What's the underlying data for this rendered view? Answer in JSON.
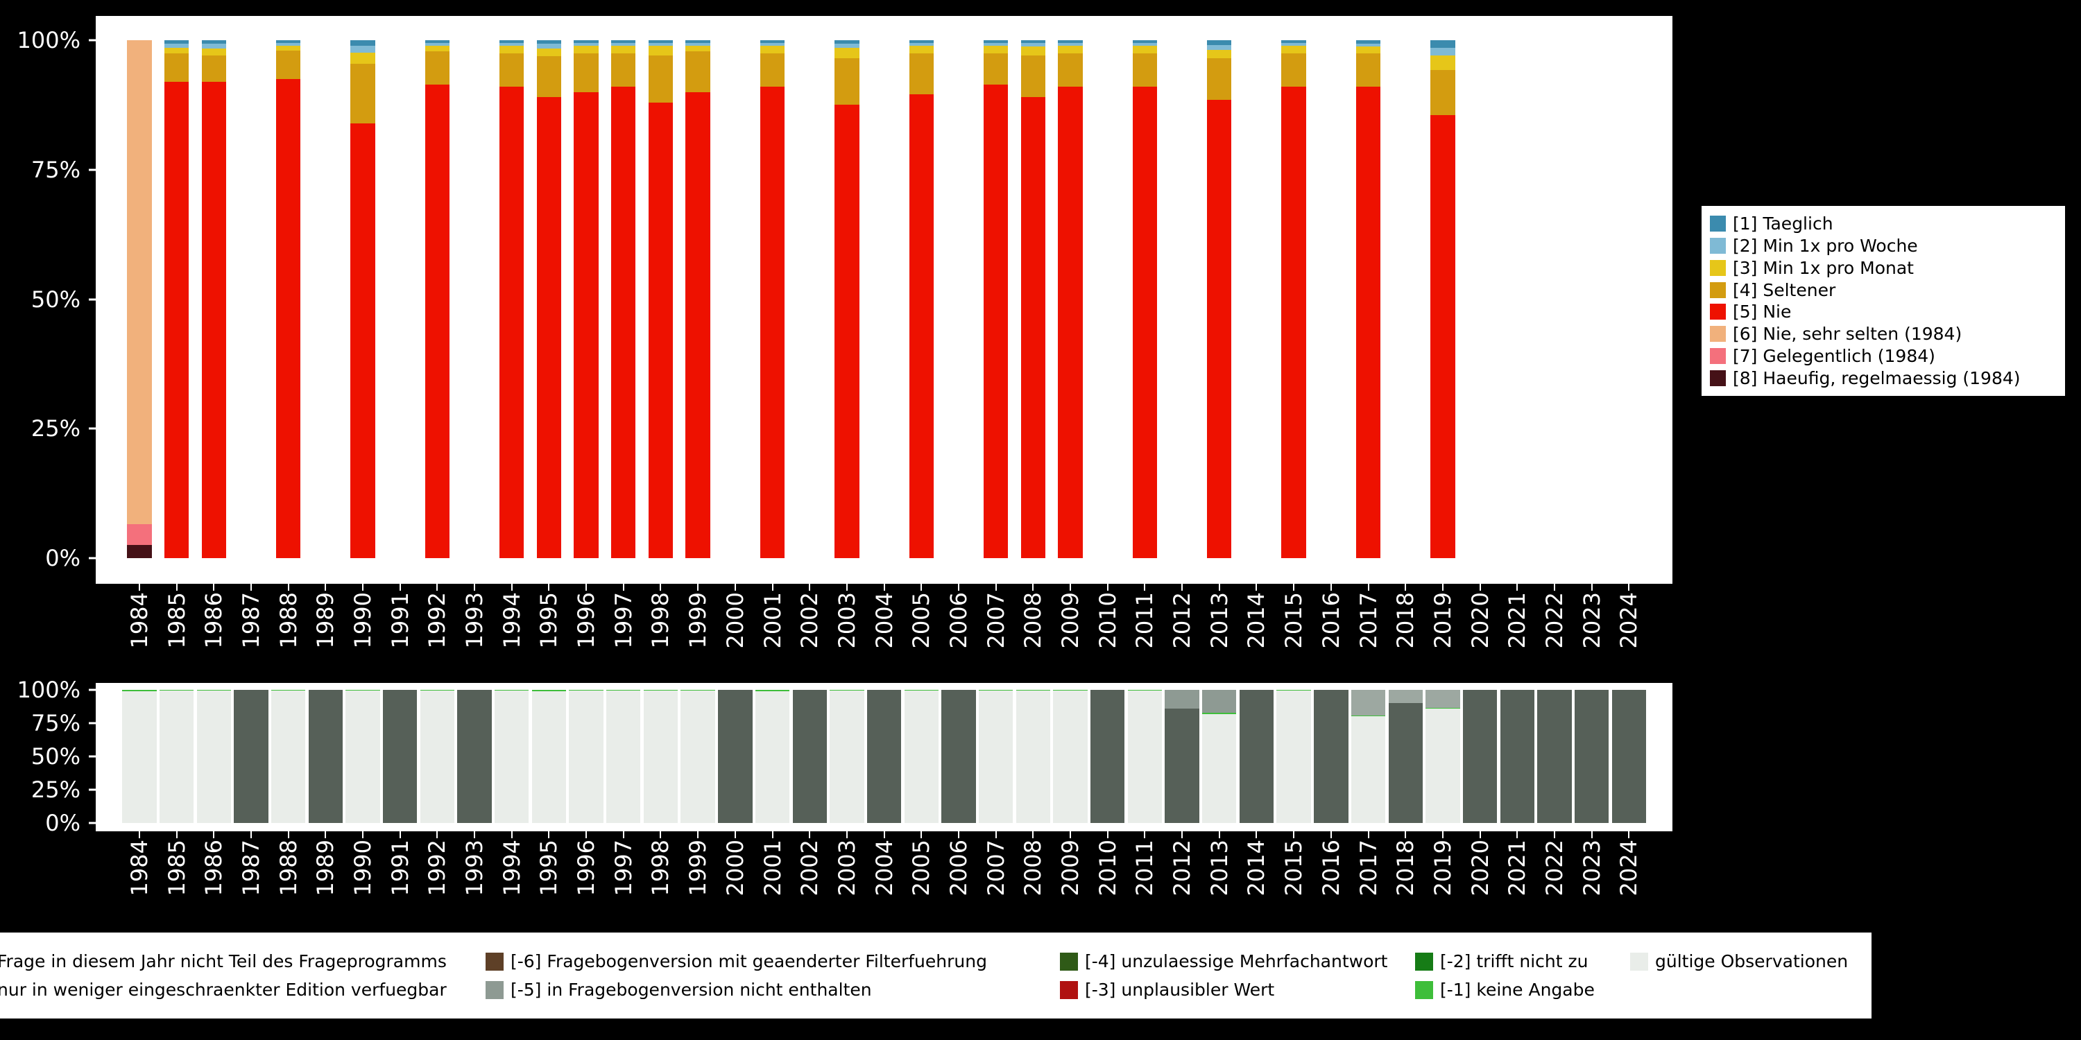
{
  "figure": {
    "background": "#000000",
    "panel_background": "#ffffff",
    "axis_text_color": "#ffffff"
  },
  "chart_data": [
    {
      "type": "bar",
      "stacked": true,
      "title": "",
      "xlabel": "",
      "ylabel": "",
      "legend_position": "right",
      "ylim": [
        0,
        100
      ],
      "bar_width_fraction": 0.66,
      "yticks": [
        {
          "label": "0%",
          "value": 0
        },
        {
          "label": "25%",
          "value": 25
        },
        {
          "label": "50%",
          "value": 50
        },
        {
          "label": "75%",
          "value": 75
        },
        {
          "label": "100%",
          "value": 100
        }
      ],
      "x": [
        "1984",
        "1985",
        "1986",
        "1987",
        "1988",
        "1989",
        "1990",
        "1991",
        "1992",
        "1993",
        "1994",
        "1995",
        "1996",
        "1997",
        "1998",
        "1999",
        "2000",
        "2001",
        "2002",
        "2003",
        "2004",
        "2005",
        "2006",
        "2007",
        "2008",
        "2009",
        "2010",
        "2011",
        "2012",
        "2013",
        "2014",
        "2015",
        "2016",
        "2017",
        "2018",
        "2019",
        "2020",
        "2021",
        "2022",
        "2023",
        "2024"
      ],
      "series": [
        {
          "name": "[1] Taeglich",
          "color": "#3B8BAE",
          "values": [
            0,
            0.6,
            0.6,
            0,
            0.5,
            0,
            1.0,
            0,
            0.5,
            0,
            0.5,
            0.7,
            0.5,
            0.5,
            0.5,
            0.5,
            0,
            0.5,
            0,
            0.6,
            0,
            0.5,
            0,
            0.5,
            0.5,
            0.5,
            0,
            0.5,
            0,
            0.9,
            0,
            0.5,
            0,
            0.6,
            0,
            1.4,
            0,
            0,
            0,
            0,
            0
          ]
        },
        {
          "name": "[2] Min 1x pro Woche",
          "color": "#7FBAD5",
          "values": [
            0,
            0.9,
            1.0,
            0,
            0.6,
            0,
            1.4,
            0,
            0.6,
            0,
            0.6,
            0.9,
            0.6,
            0.6,
            0.6,
            0.6,
            0,
            0.6,
            0,
            0.9,
            0,
            0.6,
            0,
            0.6,
            0.7,
            0.6,
            0,
            0.6,
            0,
            1.0,
            0,
            0.6,
            0,
            0.6,
            0,
            1.6,
            0,
            0,
            0,
            0,
            0
          ]
        },
        {
          "name": "[3] Min 1x pro Monat",
          "color": "#E6C619",
          "values": [
            0,
            1.0,
            1.4,
            0,
            0.9,
            0,
            2.2,
            0,
            1.0,
            0,
            1.4,
            1.5,
            1.4,
            1.4,
            1.8,
            1.0,
            0,
            1.4,
            0,
            2.0,
            0,
            1.4,
            0,
            1.4,
            1.8,
            1.4,
            0,
            1.4,
            0,
            1.6,
            0,
            1.4,
            0,
            1.4,
            0,
            2.8,
            0,
            0,
            0,
            0,
            0
          ]
        },
        {
          "name": "[4] Seltener",
          "color": "#D39C10",
          "values": [
            0,
            5.5,
            5.0,
            0,
            5.5,
            0,
            11.4,
            0,
            6.4,
            0,
            6.5,
            7.9,
            7.5,
            6.5,
            9.1,
            7.9,
            0,
            6.5,
            0,
            9.0,
            0,
            8.0,
            0,
            6.0,
            8.0,
            6.5,
            0,
            6.5,
            0,
            8.0,
            0,
            6.5,
            0,
            6.4,
            0,
            8.7,
            0,
            0,
            0,
            0,
            0
          ]
        },
        {
          "name": "[5] Nie",
          "color": "#EE1100",
          "values": [
            0,
            92.0,
            92.0,
            0,
            92.5,
            0,
            84.0,
            0,
            91.5,
            0,
            91.0,
            89.0,
            90.0,
            91.0,
            88.0,
            90.0,
            0,
            91.0,
            0,
            87.5,
            0,
            89.5,
            0,
            91.5,
            89.0,
            91.0,
            0,
            91.0,
            0,
            88.5,
            0,
            91.0,
            0,
            91.0,
            0,
            85.5,
            0,
            0,
            0,
            0,
            0
          ]
        },
        {
          "name": "[6] Nie, sehr selten (1984)",
          "color": "#F1B17C",
          "values": [
            93.5,
            0,
            0,
            0,
            0,
            0,
            0,
            0,
            0,
            0,
            0,
            0,
            0,
            0,
            0,
            0,
            0,
            0,
            0,
            0,
            0,
            0,
            0,
            0,
            0,
            0,
            0,
            0,
            0,
            0,
            0,
            0,
            0,
            0,
            0,
            0,
            0,
            0,
            0,
            0,
            0
          ]
        },
        {
          "name": "[7] Gelegentlich (1984)",
          "color": "#F4707C",
          "values": [
            4.0,
            0,
            0,
            0,
            0,
            0,
            0,
            0,
            0,
            0,
            0,
            0,
            0,
            0,
            0,
            0,
            0,
            0,
            0,
            0,
            0,
            0,
            0,
            0,
            0,
            0,
            0,
            0,
            0,
            0,
            0,
            0,
            0,
            0,
            0,
            0,
            0,
            0,
            0,
            0,
            0
          ]
        },
        {
          "name": "[8] Haeufig, regelmaessig (1984)",
          "color": "#451117",
          "values": [
            2.5,
            0,
            0,
            0,
            0,
            0,
            0,
            0,
            0,
            0,
            0,
            0,
            0,
            0,
            0,
            0,
            0,
            0,
            0,
            0,
            0,
            0,
            0,
            0,
            0,
            0,
            0,
            0,
            0,
            0,
            0,
            0,
            0,
            0,
            0,
            0,
            0,
            0,
            0,
            0,
            0
          ]
        }
      ]
    },
    {
      "type": "bar",
      "stacked": true,
      "title": "",
      "xlabel": "",
      "ylabel": "",
      "legend_position": "bottom",
      "ylim": [
        0,
        100
      ],
      "bar_width_fraction": 0.92,
      "yticks": [
        {
          "label": "0%",
          "value": 0
        },
        {
          "label": "25%",
          "value": 25
        },
        {
          "label": "50%",
          "value": 50
        },
        {
          "label": "75%",
          "value": 75
        },
        {
          "label": "100%",
          "value": 100
        }
      ],
      "x": [
        "1984",
        "1985",
        "1986",
        "1987",
        "1988",
        "1989",
        "1990",
        "1991",
        "1992",
        "1993",
        "1994",
        "1995",
        "1996",
        "1997",
        "1998",
        "1999",
        "2000",
        "2001",
        "2002",
        "2003",
        "2004",
        "2005",
        "2006",
        "2007",
        "2008",
        "2009",
        "2010",
        "2011",
        "2012",
        "2013",
        "2014",
        "2015",
        "2016",
        "2017",
        "2018",
        "2019",
        "2020",
        "2021",
        "2022",
        "2023",
        "2024"
      ],
      "series": [
        {
          "name": "nur in weniger eingeschraenkter Edition verfuegbar",
          "color": "#9DA8A1",
          "values": [
            0,
            0,
            0,
            0,
            0,
            0,
            0,
            0,
            0,
            0,
            0,
            0,
            0,
            0,
            0,
            0,
            0,
            0,
            0,
            0,
            0,
            0,
            0,
            0,
            0,
            0,
            0,
            0,
            0,
            0,
            0,
            0,
            0,
            19.5,
            10,
            13.5,
            0,
            0,
            0,
            0,
            0
          ]
        },
        {
          "name": "[-5] in Fragebogenversion nicht enthalten",
          "color": "#8E9A93",
          "values": [
            0,
            0,
            0,
            0,
            0,
            0,
            0,
            0,
            0,
            0,
            0,
            0,
            0,
            0,
            0,
            0,
            0,
            0,
            0,
            0,
            0,
            0,
            0,
            0,
            0,
            0,
            0,
            0,
            14,
            17.2,
            0,
            0,
            0,
            0,
            0,
            0,
            0,
            0,
            0,
            0,
            0
          ]
        },
        {
          "name": "Frage in diesem Jahr nicht Teil des Frageprogramms",
          "color": "#566058",
          "values": [
            0,
            0,
            0,
            100,
            0,
            100,
            0,
            100,
            0,
            100,
            0,
            0,
            0,
            0,
            0,
            0,
            100,
            0,
            100,
            0,
            100,
            0,
            100,
            0,
            0,
            0,
            100,
            0,
            86,
            0,
            100,
            0,
            100,
            0,
            90,
            0,
            100,
            100,
            100,
            100,
            100
          ]
        },
        {
          "name": "[-1] keine Angabe",
          "color": "#3EBE3A",
          "values": [
            0.8,
            0.7,
            0.5,
            0,
            0.3,
            0,
            0.5,
            0,
            0.5,
            0,
            0.7,
            0.8,
            0.6,
            0.4,
            0.4,
            0.7,
            0,
            0.8,
            0,
            0.4,
            0,
            0.4,
            0,
            0.7,
            0.5,
            0.7,
            0,
            0.5,
            0,
            0.8,
            0,
            0.5,
            0,
            0.5,
            0,
            0.5,
            0,
            0,
            0,
            0,
            0
          ]
        },
        {
          "name": "gültige Observationen",
          "color": "#E9EDE9",
          "values": [
            99.2,
            99.3,
            99.5,
            0,
            99.7,
            0,
            99.5,
            0,
            99.5,
            0,
            99.3,
            99.2,
            99.4,
            99.6,
            99.6,
            99.3,
            0,
            99.2,
            0,
            99.6,
            0,
            99.6,
            0,
            99.3,
            99.5,
            99.3,
            0,
            99.5,
            0,
            82.0,
            0,
            99.5,
            0,
            80.0,
            0,
            86.0,
            0,
            0,
            0,
            0,
            0
          ]
        }
      ]
    }
  ],
  "bottom_legend": {
    "rows": [
      [
        {
          "label": "Frage in diesem Jahr nicht Teil des Frageprogramms",
          "color": "#566058"
        },
        {
          "label": "[-6] Fragebogenversion mit geaenderter Filterfuehrung",
          "color": "#5E4027"
        },
        {
          "label": "[-4] unzulaessige Mehrfachantwort",
          "color": "#2F5A17"
        },
        {
          "label": "[-2] trifft nicht zu",
          "color": "#167C16"
        },
        {
          "label": "gültige Observationen",
          "color": "#E9EDE9"
        }
      ],
      [
        {
          "label": "nur in weniger eingeschraenkter Edition verfuegbar",
          "color": "#9DA8A1"
        },
        {
          "label": "[-5] in Fragebogenversion nicht enthalten",
          "color": "#8E9A93"
        },
        {
          "label": "[-3] unplausibler Wert",
          "color": "#B01211"
        },
        {
          "label": "[-1] keine Angabe",
          "color": "#3EBE3A"
        }
      ]
    ]
  }
}
